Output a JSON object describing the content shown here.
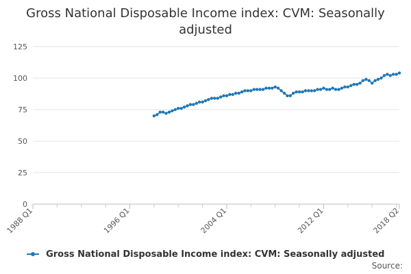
{
  "chart_data": {
    "type": "line",
    "title": "Gross National Disposable Income index: CVM: Seasonally adjusted",
    "xlabel": "",
    "ylabel": "",
    "ylim": [
      0,
      125
    ],
    "yticks": [
      0,
      25,
      50,
      75,
      100,
      125
    ],
    "x_tick_labels": [
      "1988 Q1",
      "1996 Q1",
      "2004 Q1",
      "2012 Q1",
      "2018 Q2"
    ],
    "x_tick_years": [
      1988.0,
      1996.0,
      2004.0,
      2012.0,
      2018.25
    ],
    "x_range": [
      1988.0,
      2018.25
    ],
    "series": [
      {
        "name": "Gross National Disposable Income index: CVM: Seasonally adjusted",
        "color": "#1f77b4",
        "x": [
          1998.0,
          1998.25,
          1998.5,
          1998.75,
          1999.0,
          1999.25,
          1999.5,
          1999.75,
          2000.0,
          2000.25,
          2000.5,
          2000.75,
          2001.0,
          2001.25,
          2001.5,
          2001.75,
          2002.0,
          2002.25,
          2002.5,
          2002.75,
          2003.0,
          2003.25,
          2003.5,
          2003.75,
          2004.0,
          2004.25,
          2004.5,
          2004.75,
          2005.0,
          2005.25,
          2005.5,
          2005.75,
          2006.0,
          2006.25,
          2006.5,
          2006.75,
          2007.0,
          2007.25,
          2007.5,
          2007.75,
          2008.0,
          2008.25,
          2008.5,
          2008.75,
          2009.0,
          2009.25,
          2009.5,
          2009.75,
          2010.0,
          2010.25,
          2010.5,
          2010.75,
          2011.0,
          2011.25,
          2011.5,
          2011.75,
          2012.0,
          2012.25,
          2012.5,
          2012.75,
          2013.0,
          2013.25,
          2013.5,
          2013.75,
          2014.0,
          2014.25,
          2014.5,
          2014.75,
          2015.0,
          2015.25,
          2015.5,
          2015.75,
          2016.0,
          2016.25,
          2016.5,
          2016.75,
          2017.0,
          2017.25,
          2017.5,
          2017.75,
          2018.0,
          2018.25
        ],
        "values": [
          70,
          71,
          73,
          73,
          72,
          73,
          74,
          75,
          76,
          76,
          77,
          78,
          79,
          79,
          80,
          81,
          81,
          82,
          83,
          84,
          84,
          84,
          85,
          86,
          86,
          87,
          87,
          88,
          88,
          89,
          90,
          90,
          90,
          91,
          91,
          91,
          91,
          92,
          92,
          92,
          93,
          92,
          90,
          88,
          86,
          86,
          88,
          89,
          89,
          89,
          90,
          90,
          90,
          90,
          91,
          91,
          92,
          91,
          91,
          92,
          91,
          91,
          92,
          93,
          93,
          94,
          95,
          95,
          96,
          98,
          99,
          98,
          96,
          98,
          99,
          100,
          102,
          103,
          102,
          103,
          103,
          104
        ]
      }
    ]
  },
  "legend": {
    "label": "Gross National Disposable Income index: CVM: Seasonally adjusted"
  },
  "footer": {
    "source_label": "Source:"
  }
}
